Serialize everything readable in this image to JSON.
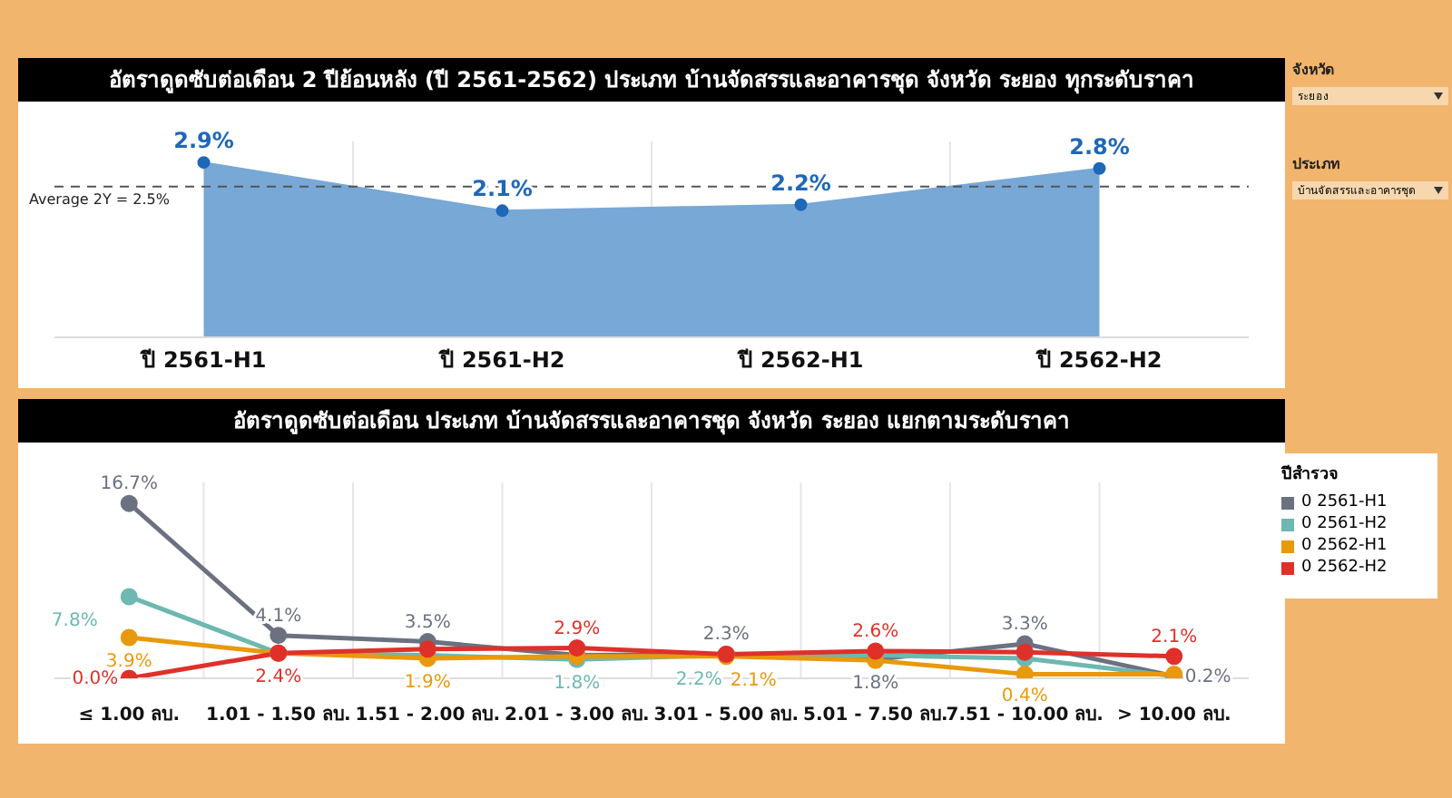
{
  "chart_data": [
    {
      "type": "area",
      "title": "อัตราดูดซับต่อเดือน 2 ปีย้อนหลัง (ปี 2561-2562) ประเภท บ้านจัดสรรและอาคารชุด จังหวัด ระยอง ทุกระดับราคา",
      "categories": [
        "ปี 2561-H1",
        "ปี 2561-H2",
        "ปี 2562-H1",
        "ปี 2562-H2"
      ],
      "series": [
        {
          "color": "#78a8d6",
          "values": [
            2.9,
            2.1,
            2.2,
            2.8
          ],
          "value_labels": [
            "2.9%",
            "2.1%",
            "2.2%",
            "2.8%"
          ]
        }
      ],
      "marker": "circle",
      "grid": "x",
      "tick_labels": "x",
      "legend": false,
      "ref_lines": [
        {
          "axis": "y",
          "value": 2.5,
          "label": "Average 2Y = 2.5%",
          "color": "#555555",
          "line_style": "dashed"
        }
      ],
      "annotations": [
        "จังหวัด",
        "ระยอง",
        "ประเภท",
        "บ้านจัดสรรและอาคารชุด"
      ]
    },
    {
      "type": "line",
      "title": "อัตราดูดซับต่อเดือน ประเภท บ้านจัดสรรและอาคารชุด จังหวัด ระยอง แยกตามระดับราคา",
      "categories": [
        "≤ 1.00 ลบ.",
        "1.01 - 1.50 ลบ.",
        "1.51 - 2.00 ลบ.",
        "2.01 - 3.00 ลบ.",
        "3.01 - 5.00 ลบ.",
        "5.01 - 7.50 ลบ.",
        "7.51 - 10.00 ลบ.",
        "> 10.00 ลบ."
      ],
      "legend_title": "ปีสำรวจ",
      "legend": "right",
      "grid": "x",
      "tick_labels": "x",
      "marker": "circle",
      "series": [
        {
          "name": "0 2561-H1",
          "color": "#6b7180",
          "values": [
            16.7,
            4.1,
            3.5,
            2.2,
            2.3,
            1.8,
            3.3,
            0.2
          ],
          "value_labels": [
            "16.7%",
            "4.1%",
            "3.5%",
            null,
            "2.3%",
            "1.8%",
            "3.3%",
            "0.2%"
          ]
        },
        {
          "name": "0 2561-H2",
          "color": "#6db8b0",
          "values": [
            7.8,
            2.4,
            2.2,
            1.8,
            2.2,
            2.2,
            1.9,
            0.2
          ],
          "value_labels": [
            "7.8%",
            null,
            null,
            "1.8%",
            "2.2%",
            null,
            null,
            null
          ]
        },
        {
          "name": "0 2562-H1",
          "color": "#e8990c",
          "values": [
            3.9,
            2.4,
            1.9,
            2.1,
            2.1,
            1.7,
            0.4,
            0.4
          ],
          "value_labels": [
            "3.9%",
            null,
            "1.9%",
            null,
            "2.1%",
            null,
            "0.4%",
            null
          ]
        },
        {
          "name": "0 2562-H2",
          "color": "#e0302a",
          "values": [
            0.0,
            2.4,
            2.8,
            2.9,
            2.3,
            2.6,
            2.5,
            2.1
          ],
          "value_labels": [
            "0.0%",
            "2.4%",
            null,
            "2.9%",
            null,
            "2.6%",
            null,
            "2.1%"
          ]
        }
      ]
    }
  ]
}
